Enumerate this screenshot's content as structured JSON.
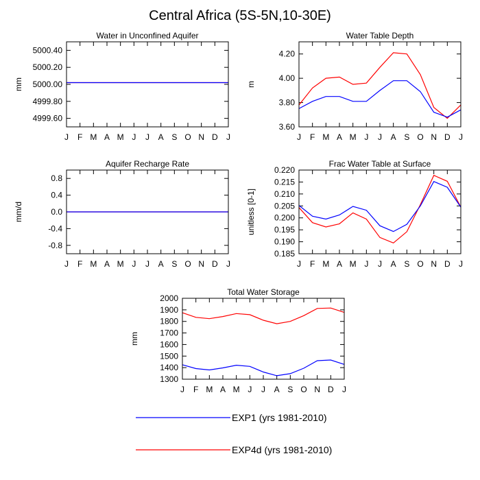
{
  "title": "Central Africa (5S-5N,10-30E)",
  "colors": {
    "exp1": "#0000ff",
    "exp4d": "#ff0000"
  },
  "legend": [
    {
      "label": "EXP1 (yrs 1981-2010)",
      "color": "#0000ff"
    },
    {
      "label": "EXP4d (yrs 1981-2010)",
      "color": "#ff0000"
    }
  ],
  "chart_data": [
    {
      "type": "line",
      "title": "Water in Unconfined Aquifer",
      "ylabel": "mm",
      "categories": [
        "J",
        "F",
        "M",
        "A",
        "M",
        "J",
        "J",
        "A",
        "S",
        "O",
        "N",
        "D",
        "J"
      ],
      "ylim": [
        4999.5,
        5000.5
      ],
      "yticks": [
        4999.6,
        4999.8,
        5000.0,
        5000.2,
        5000.4
      ],
      "ytick_labels": [
        "4999.60",
        "4999.80",
        "5000.00",
        "5000.20",
        "5000.40"
      ],
      "series": [
        {
          "name": "EXP1 (yrs 1981-2010)",
          "color": "#0000ff",
          "values": [
            5000.02,
            5000.02,
            5000.02,
            5000.02,
            5000.02,
            5000.02,
            5000.02,
            5000.02,
            5000.02,
            5000.02,
            5000.02,
            5000.02,
            5000.02
          ]
        },
        {
          "name": "EXP4d (yrs 1981-2010)",
          "color": "#ff0000",
          "values": [
            5000.02,
            5000.02,
            5000.02,
            5000.02,
            5000.02,
            5000.02,
            5000.02,
            5000.02,
            5000.02,
            5000.02,
            5000.02,
            5000.02,
            5000.02
          ]
        }
      ]
    },
    {
      "type": "line",
      "title": "Water Table Depth",
      "ylabel": "m",
      "categories": [
        "J",
        "F",
        "M",
        "A",
        "M",
        "J",
        "J",
        "A",
        "S",
        "O",
        "N",
        "D",
        "J"
      ],
      "ylim": [
        3.6,
        4.3
      ],
      "yticks": [
        3.6,
        3.8,
        4.0,
        4.2
      ],
      "ytick_labels": [
        "3.60",
        "3.80",
        "4.00",
        "4.20"
      ],
      "series": [
        {
          "name": "EXP1 (yrs 1981-2010)",
          "color": "#0000ff",
          "values": [
            3.75,
            3.81,
            3.85,
            3.85,
            3.81,
            3.81,
            3.9,
            3.98,
            3.98,
            3.89,
            3.72,
            3.68,
            3.74
          ]
        },
        {
          "name": "EXP4d (yrs 1981-2010)",
          "color": "#ff0000",
          "values": [
            3.78,
            3.92,
            4.0,
            4.01,
            3.95,
            3.96,
            4.09,
            4.21,
            4.2,
            4.03,
            3.76,
            3.67,
            3.78
          ]
        }
      ]
    },
    {
      "type": "line",
      "title": "Aquifer Recharge Rate",
      "ylabel": "mm/d",
      "categories": [
        "J",
        "F",
        "M",
        "A",
        "M",
        "J",
        "J",
        "A",
        "S",
        "O",
        "N",
        "D",
        "J"
      ],
      "ylim": [
        -1.0,
        1.0
      ],
      "yticks": [
        -0.8,
        -0.4,
        0.0,
        0.4,
        0.8
      ],
      "ytick_labels": [
        "-0.8",
        "-0.4",
        "0.0",
        "0.4",
        "0.8"
      ],
      "series": [
        {
          "name": "EXP1 (yrs 1981-2010)",
          "color": "#0000ff",
          "values": [
            0,
            0,
            0,
            0,
            0,
            0,
            0,
            0,
            0,
            0,
            0,
            0,
            0
          ]
        },
        {
          "name": "EXP4d (yrs 1981-2010)",
          "color": "#ff0000",
          "values": [
            0,
            0,
            0,
            0,
            0,
            0,
            0,
            0,
            0,
            0,
            0,
            0,
            0
          ]
        }
      ]
    },
    {
      "type": "line",
      "title": "Frac Water Table at Surface",
      "ylabel": "unitless [0-1]",
      "categories": [
        "J",
        "F",
        "M",
        "A",
        "M",
        "J",
        "J",
        "A",
        "S",
        "O",
        "N",
        "D",
        "J"
      ],
      "ylim": [
        0.185,
        0.22
      ],
      "yticks": [
        0.185,
        0.19,
        0.195,
        0.2,
        0.205,
        0.21,
        0.215,
        0.22
      ],
      "ytick_labels": [
        "0.185",
        "0.190",
        "0.195",
        "0.200",
        "0.205",
        "0.210",
        "0.215",
        "0.220"
      ],
      "series": [
        {
          "name": "EXP1 (yrs 1981-2010)",
          "color": "#0000ff",
          "values": [
            0.2052,
            0.2007,
            0.1995,
            0.2012,
            0.2048,
            0.2032,
            0.1967,
            0.1943,
            0.1973,
            0.205,
            0.2152,
            0.2128,
            0.2045
          ]
        },
        {
          "name": "EXP4d (yrs 1981-2010)",
          "color": "#ff0000",
          "values": [
            0.2043,
            0.198,
            0.1962,
            0.1975,
            0.2021,
            0.1995,
            0.1918,
            0.1895,
            0.1942,
            0.2055,
            0.2178,
            0.2153,
            0.2045
          ]
        }
      ]
    },
    {
      "type": "line",
      "title": "Total Water Storage",
      "ylabel": "mm",
      "categories": [
        "J",
        "F",
        "M",
        "A",
        "M",
        "J",
        "J",
        "A",
        "S",
        "O",
        "N",
        "D",
        "J"
      ],
      "ylim": [
        1300,
        2000
      ],
      "yticks": [
        1300,
        1400,
        1500,
        1600,
        1700,
        1800,
        1900,
        2000
      ],
      "ytick_labels": [
        "1300",
        "1400",
        "1500",
        "1600",
        "1700",
        "1800",
        "1900",
        "2000"
      ],
      "series": [
        {
          "name": "EXP1 (yrs 1981-2010)",
          "color": "#0000ff",
          "values": [
            1425,
            1392,
            1380,
            1398,
            1421,
            1411,
            1362,
            1330,
            1348,
            1395,
            1460,
            1466,
            1428
          ]
        },
        {
          "name": "EXP4d (yrs 1981-2010)",
          "color": "#ff0000",
          "values": [
            1875,
            1835,
            1824,
            1842,
            1868,
            1858,
            1810,
            1780,
            1800,
            1850,
            1912,
            1916,
            1878
          ]
        }
      ]
    }
  ]
}
